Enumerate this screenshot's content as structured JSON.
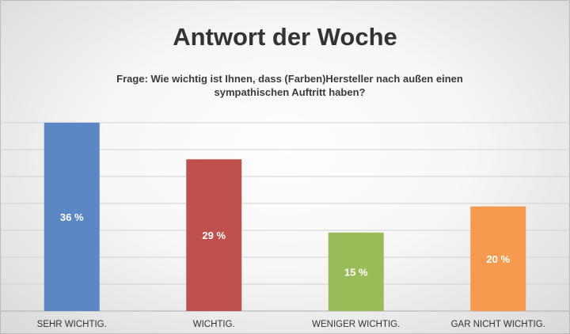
{
  "chart_data": {
    "type": "bar",
    "title": "Antwort der Woche",
    "subtitle": "Frage: Wie wichtig ist Ihnen, dass (Farben)Hersteller nach außen einen sympathischen Auftritt haben?",
    "categories": [
      "SEHR WICHTIG.",
      "WICHTIG.",
      "WENIGER WICHTIG.",
      "GAR NICHT WICHTIG."
    ],
    "values": [
      36,
      29,
      15,
      20
    ],
    "data_labels": [
      "36 %",
      "29 %",
      "15 %",
      "20 %"
    ],
    "colors": [
      "#5b87c5",
      "#c0504d",
      "#9bbb59",
      "#f59a4e"
    ],
    "ylim": [
      0,
      36
    ],
    "grid": true,
    "legend": "none"
  }
}
